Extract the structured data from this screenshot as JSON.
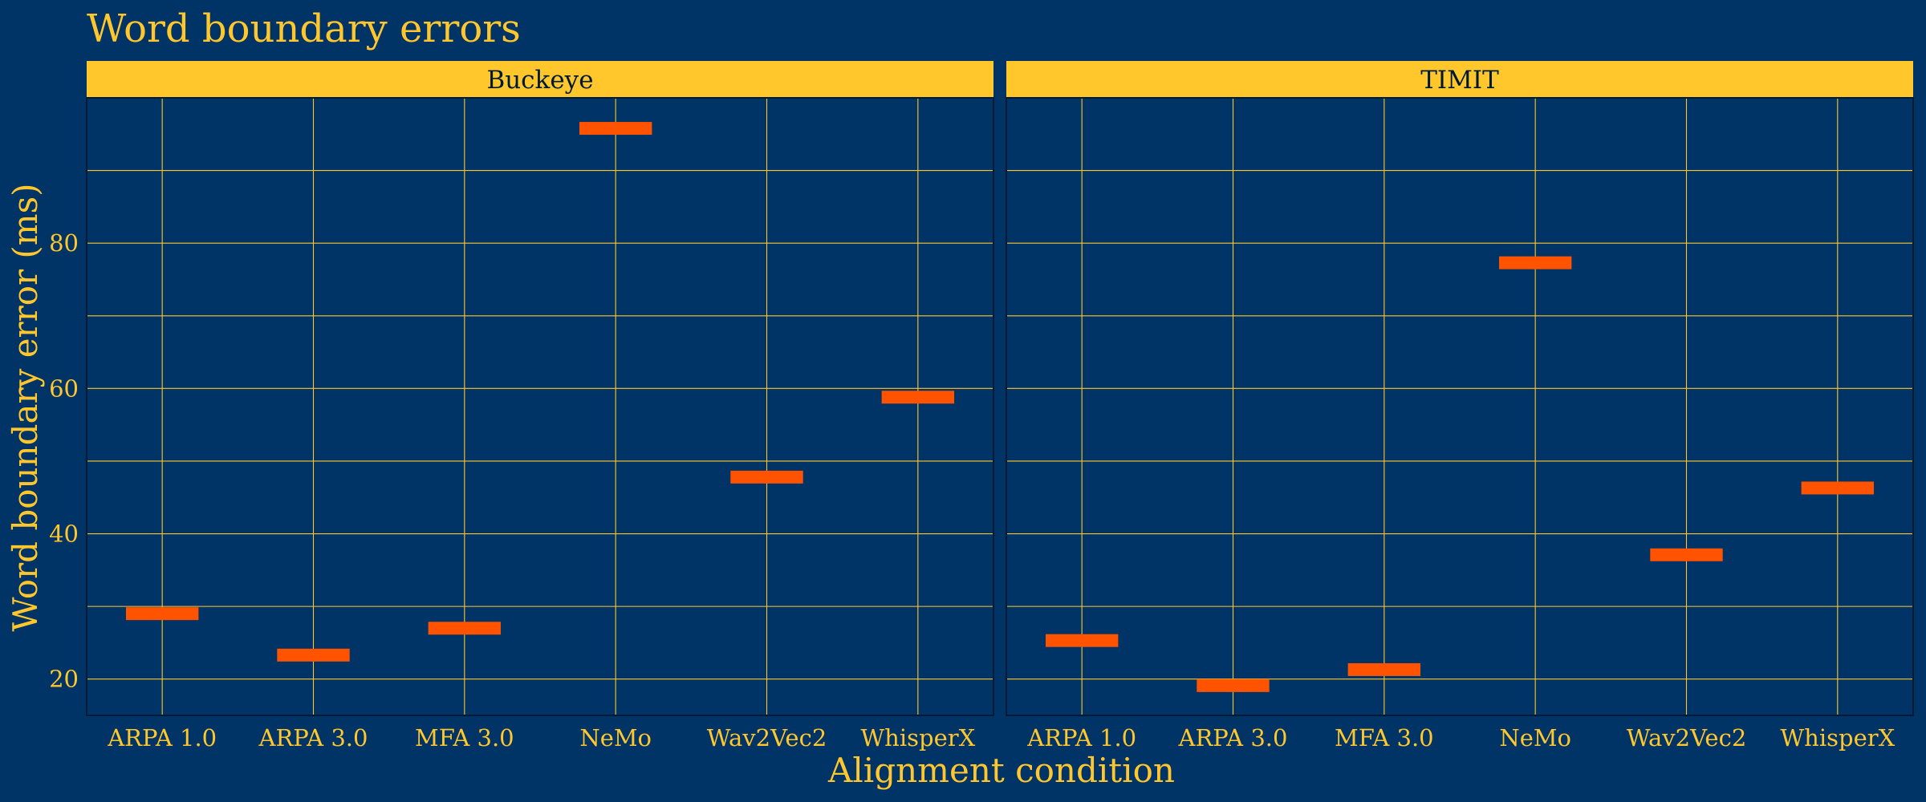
{
  "chart_data": {
    "type": "crossbar",
    "title": "Word boundary errors",
    "xlabel": "Alignment condition",
    "ylabel": "Word boundary error (ms)",
    "ylim": [
      15,
      100
    ],
    "yticks": [
      20,
      40,
      60,
      80
    ],
    "grid": true,
    "categories": [
      "ARPA 1.0",
      "ARPA 3.0",
      "MFA 3.0",
      "NeMo",
      "Wav2Vec2",
      "WhisperX"
    ],
    "facets": [
      {
        "name": "Buckeye",
        "values": [
          29.0,
          23.3,
          27.0,
          95.8,
          47.8,
          58.8
        ]
      },
      {
        "name": "TIMIT",
        "values": [
          25.3,
          19.1,
          21.3,
          77.3,
          37.1,
          46.3
        ]
      }
    ],
    "colors": {
      "background": "#003366",
      "accent": "#FFC72C",
      "bar": "#FF5300",
      "strip_text": "#001a33",
      "panel_border": "#001a33"
    }
  }
}
